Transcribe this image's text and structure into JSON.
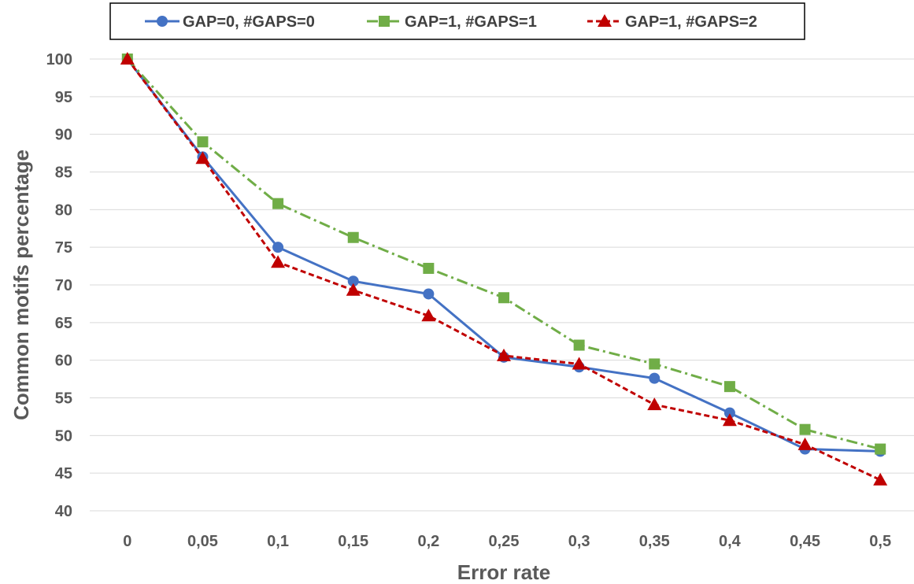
{
  "chart_data": {
    "type": "line",
    "title": "",
    "xlabel": "Error rate",
    "ylabel": "Common motifs percentage",
    "categories": [
      "0",
      "0,05",
      "0,1",
      "0,15",
      "0,2",
      "0,25",
      "0,3",
      "0,35",
      "0,4",
      "0,45",
      "0,5"
    ],
    "y_ticks": [
      "40",
      "45",
      "50",
      "55",
      "60",
      "65",
      "70",
      "75",
      "80",
      "85",
      "90",
      "95",
      "100"
    ],
    "ylim": [
      40,
      100
    ],
    "grid": true,
    "legend_position": "top",
    "series": [
      {
        "name": "GAP=0, #GAPS=0",
        "color": "#4472C4",
        "marker": "circle",
        "line_style": "solid",
        "values": [
          100,
          87.0,
          75.0,
          70.5,
          68.8,
          60.4,
          59.1,
          57.6,
          53.0,
          48.2,
          47.9
        ]
      },
      {
        "name": "GAP=1, #GAPS=1",
        "color": "#70AD47",
        "marker": "square",
        "line_style": "dashdot",
        "values": [
          100,
          89.0,
          80.8,
          76.3,
          72.2,
          68.3,
          62.0,
          59.5,
          56.5,
          50.8,
          48.2
        ]
      },
      {
        "name": "GAP=1, #GAPS=2",
        "color": "#C00000",
        "marker": "triangle",
        "line_style": "dashed",
        "values": [
          100,
          86.8,
          73.0,
          69.3,
          65.9,
          60.6,
          59.5,
          54.1,
          52.0,
          48.8,
          44.1
        ]
      }
    ]
  }
}
